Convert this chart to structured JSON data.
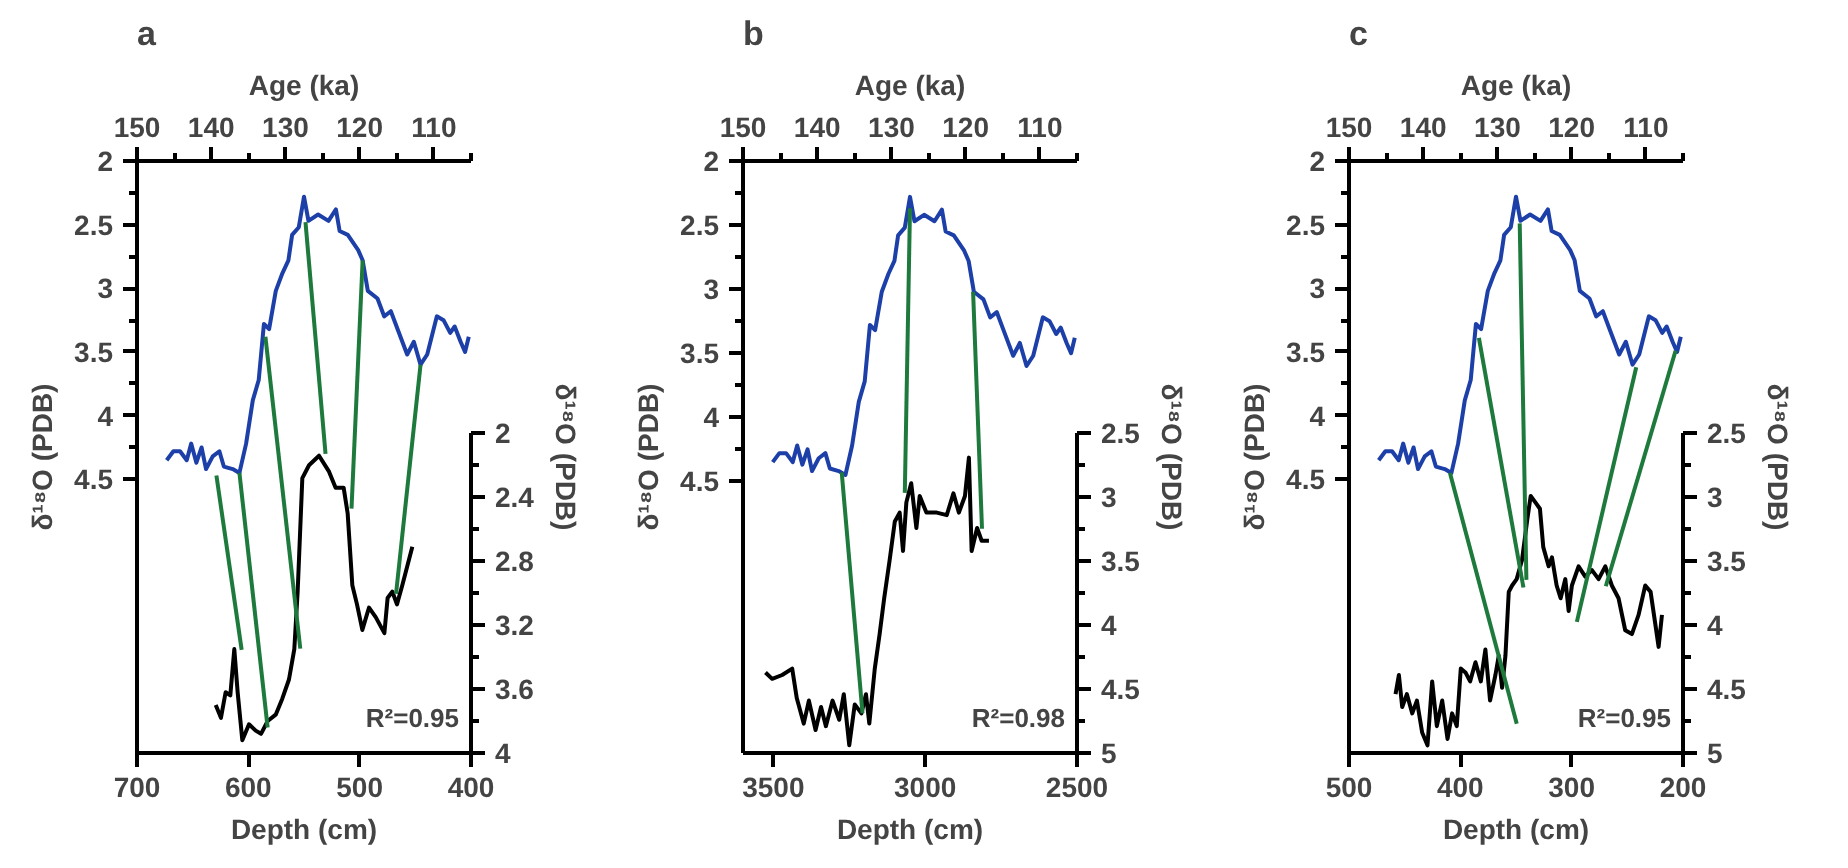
{
  "chart_data": [
    {
      "type": "line",
      "title": "a",
      "xlabel": "Depth (cm)",
      "x2label": "Age (ka)",
      "ylabel": "δ¹⁸O (PDB)",
      "y2label": "δ¹⁸O (PDB)",
      "xlim": [
        700,
        400
      ],
      "xticks": [
        700,
        600,
        500,
        400
      ],
      "x2lim": [
        150,
        105
      ],
      "x2ticks": [
        150,
        {
          "value": 145,
          "label": null
        },
        140,
        {
          "value": 135,
          "label": null
        },
        130,
        {
          "value": 125,
          "label": null
        },
        120,
        {
          "value": 115,
          "label": null
        },
        110,
        {
          "value": 105,
          "label": null
        }
      ],
      "ylim": [
        6.65,
        2
      ],
      "yticks": [
        2,
        {
          "value": 2.25,
          "label": null
        },
        2.5,
        {
          "value": 2.75,
          "label": null
        },
        3,
        {
          "value": 3.25,
          "label": null
        },
        3.5,
        {
          "value": 3.75,
          "label": null
        },
        4,
        {
          "value": 4.25,
          "label": null
        },
        4.5
      ],
      "y2lim": [
        4,
        2
      ],
      "y2ticks": [
        2,
        {
          "value": 2.2,
          "label": null
        },
        2.4,
        {
          "value": 2.6,
          "label": null
        },
        2.8,
        {
          "value": 3.0,
          "label": null
        },
        3.2,
        {
          "value": 3.4,
          "label": null
        },
        3.6,
        {
          "value": 3.8,
          "label": null
        },
        4
      ],
      "annotations": [
        "R²=0.95"
      ],
      "series": [
        {
          "color": "#1d3fa8",
          "axis": "x2",
          "x": [
            146,
            145.1,
            144.2,
            143.3,
            142.7,
            142,
            141.3,
            140.7,
            139.8,
            138.9,
            138.3,
            137.1,
            136.2,
            135.3,
            134.4,
            133.6,
            132.9,
            132.2,
            131.3,
            130.4,
            129.6,
            129.1,
            128.2,
            127.5,
            126.9,
            125.6,
            124.2,
            123.2,
            122.7,
            121.6,
            120.2,
            119.6,
            118.9,
            117.6,
            116.7,
            115.8,
            114.9,
            113.6,
            112.7,
            111.8,
            110.9,
            109.6,
            108.7,
            107.8,
            107.2,
            106.4,
            105.8,
            105.3
          ],
          "values": [
            4.35,
            4.28,
            4.28,
            4.35,
            4.22,
            4.37,
            4.25,
            4.42,
            4.32,
            4.28,
            4.4,
            4.42,
            4.45,
            4.22,
            3.88,
            3.72,
            3.28,
            3.32,
            3.02,
            2.88,
            2.78,
            2.58,
            2.52,
            2.28,
            2.47,
            2.42,
            2.47,
            2.38,
            2.55,
            2.58,
            2.7,
            2.78,
            3.02,
            3.08,
            3.22,
            3.18,
            3.32,
            3.52,
            3.42,
            3.6,
            3.52,
            3.22,
            3.25,
            3.35,
            3.3,
            3.42,
            3.5,
            3.38
          ]
        },
        {
          "color": "#000000",
          "axis": "y2",
          "x": [
            629.3,
            624.6,
            620.4,
            616.2,
            612.6,
            609.6,
            605.4,
            599.4,
            593.4,
            588.6,
            582.6,
            575.4,
            569.5,
            563.5,
            558.7,
            555.7,
            551.5,
            545.5,
            536.5,
            527.5,
            521.6,
            514.4,
            510.8,
            506.6,
            502.4,
            497.6,
            491.6,
            485.6,
            477.8,
            474.9,
            470.7,
            466.5,
            461.7,
            452.7
          ],
          "values": [
            3.7,
            3.78,
            3.62,
            3.64,
            3.35,
            3.62,
            3.92,
            3.82,
            3.86,
            3.88,
            3.8,
            3.76,
            3.66,
            3.54,
            3.35,
            2.99,
            2.28,
            2.2,
            2.14,
            2.24,
            2.34,
            2.34,
            2.5,
            2.95,
            3.07,
            3.23,
            3.09,
            3.15,
            3.25,
            3.03,
            2.99,
            3.07,
            2.95,
            2.71
          ]
        },
        {
          "color": "#1e7a3c",
          "axis": "x2",
          "x": [
            139.3,
            135.9
          ],
          "values": [
            4.47,
            5.84
          ]
        },
        {
          "color": "#1e7a3c",
          "axis": "x2",
          "x": [
            136.2,
            132.4
          ],
          "values": [
            4.45,
            6.45
          ]
        },
        {
          "color": "#1e7a3c",
          "axis": "x2",
          "x": [
            132.7,
            128.0
          ],
          "values": [
            3.38,
            5.83
          ]
        },
        {
          "color": "#1e7a3c",
          "axis": "x2",
          "x": [
            127.3,
            124.6
          ],
          "values": [
            2.48,
            4.3
          ]
        },
        {
          "color": "#1e7a3c",
          "axis": "x2",
          "x": [
            119.6,
            121.1
          ],
          "values": [
            2.78,
            4.73
          ]
        },
        {
          "color": "#1e7a3c",
          "axis": "x2",
          "x": [
            111.8,
            115.1
          ],
          "values": [
            3.6,
            5.4
          ]
        }
      ]
    },
    {
      "type": "line",
      "title": "b",
      "xlabel": "Depth (cm)",
      "x2label": "Age (ka)",
      "ylabel": "δ¹⁸O (PDB)",
      "y2label": "δ¹⁸O (PDB)",
      "xlim": [
        3600,
        2500
      ],
      "xticks": [
        3500,
        3000,
        2500
      ],
      "x2lim": [
        150,
        105
      ],
      "x2ticks": [
        150,
        {
          "value": 145,
          "label": null
        },
        140,
        {
          "value": 135,
          "label": null
        },
        130,
        {
          "value": 125,
          "label": null
        },
        120,
        {
          "value": 115,
          "label": null
        },
        110,
        {
          "value": 105,
          "label": null
        }
      ],
      "ylim": [
        6.62,
        2
      ],
      "yticks": [
        2,
        {
          "value": 2.25,
          "label": null
        },
        2.5,
        {
          "value": 2.75,
          "label": null
        },
        3,
        {
          "value": 3.25,
          "label": null
        },
        3.5,
        {
          "value": 3.75,
          "label": null
        },
        4,
        {
          "value": 4.25,
          "label": null
        },
        4.5
      ],
      "y2lim": [
        5,
        2.5
      ],
      "y2ticks": [
        2.5,
        {
          "value": 2.75,
          "label": null
        },
        3,
        {
          "value": 3.25,
          "label": null
        },
        3.5,
        {
          "value": 3.75,
          "label": null
        },
        4,
        {
          "value": 4.25,
          "label": null
        },
        4.5,
        {
          "value": 4.75,
          "label": null
        },
        5
      ],
      "annotations": [
        "R²=0.98"
      ],
      "series": [
        {
          "color": "#1d3fa8",
          "axis": "x2",
          "x": [
            146,
            145.1,
            144.2,
            143.3,
            142.7,
            142,
            141.3,
            140.7,
            139.8,
            138.9,
            138.3,
            137.1,
            136.2,
            135.3,
            134.4,
            133.6,
            132.9,
            132.2,
            131.3,
            130.4,
            129.6,
            129.1,
            128.2,
            127.5,
            126.9,
            125.6,
            124.2,
            123.2,
            122.7,
            121.6,
            120.2,
            119.6,
            118.9,
            117.6,
            116.7,
            115.8,
            114.9,
            113.6,
            112.7,
            111.8,
            110.9,
            109.6,
            108.7,
            107.8,
            107.2,
            106.4,
            105.8,
            105.3
          ],
          "values": [
            4.35,
            4.28,
            4.28,
            4.35,
            4.22,
            4.37,
            4.25,
            4.42,
            4.32,
            4.28,
            4.4,
            4.42,
            4.45,
            4.22,
            3.88,
            3.72,
            3.28,
            3.32,
            3.02,
            2.88,
            2.78,
            2.58,
            2.52,
            2.28,
            2.47,
            2.42,
            2.47,
            2.38,
            2.55,
            2.58,
            2.7,
            2.78,
            3.02,
            3.08,
            3.22,
            3.18,
            3.32,
            3.52,
            3.42,
            3.6,
            3.52,
            3.22,
            3.25,
            3.35,
            3.3,
            3.42,
            3.5,
            3.38
          ]
        },
        {
          "color": "#000000",
          "axis": "y2",
          "x": [
            3526,
            3504,
            3471,
            3438,
            3423,
            3400,
            3383,
            3361,
            3343,
            3327,
            3305,
            3283,
            3268,
            3250,
            3232,
            3210,
            3195,
            3184,
            3166,
            3150,
            3135,
            3117,
            3100,
            3084,
            3073,
            3062,
            3046,
            3029,
            3018,
            2996,
            2962,
            2929,
            2907,
            2889,
            2869,
            2856,
            2847,
            2829,
            2814,
            2790
          ],
          "values": [
            4.37,
            4.42,
            4.39,
            4.34,
            4.57,
            4.77,
            4.59,
            4.82,
            4.64,
            4.79,
            4.59,
            4.74,
            4.54,
            4.94,
            4.62,
            4.69,
            4.54,
            4.77,
            4.34,
            4.07,
            3.79,
            3.49,
            3.19,
            3.12,
            3.42,
            3.04,
            2.89,
            3.24,
            2.99,
            3.12,
            3.12,
            3.14,
            2.97,
            3.12,
            2.99,
            2.69,
            3.42,
            3.24,
            3.34,
            3.34
          ]
        },
        {
          "color": "#1e7a3c",
          "axis": "x2",
          "x": [
            136.7,
            133.9
          ],
          "values": [
            4.43,
            6.31
          ]
        },
        {
          "color": "#1e7a3c",
          "axis": "x2",
          "x": [
            127.5,
            128.2
          ],
          "values": [
            2.37,
            4.59
          ]
        },
        {
          "color": "#1e7a3c",
          "axis": "x2",
          "x": [
            119.0,
            117.8
          ],
          "values": [
            3.02,
            4.87
          ]
        }
      ]
    },
    {
      "type": "line",
      "title": "c",
      "xlabel": "Depth (cm)",
      "x2label": "Age (ka)",
      "ylabel": "δ¹⁸O (PDB)",
      "y2label": "δ¹⁸O (PDB)",
      "xlim": [
        500,
        200
      ],
      "xticks": [
        500,
        400,
        300,
        200
      ],
      "x2lim": [
        150,
        105
      ],
      "x2ticks": [
        150,
        {
          "value": 145,
          "label": null
        },
        140,
        {
          "value": 135,
          "label": null
        },
        130,
        {
          "value": 125,
          "label": null
        },
        120,
        {
          "value": 115,
          "label": null
        },
        110,
        {
          "value": 105,
          "label": null
        }
      ],
      "ylim": [
        6.65,
        2
      ],
      "yticks": [
        2,
        {
          "value": 2.25,
          "label": null
        },
        2.5,
        {
          "value": 2.75,
          "label": null
        },
        3,
        {
          "value": 3.25,
          "label": null
        },
        3.5,
        {
          "value": 3.75,
          "label": null
        },
        4,
        {
          "value": 4.25,
          "label": null
        },
        4.5
      ],
      "y2lim": [
        5,
        2.5
      ],
      "y2ticks": [
        2.5,
        {
          "value": 2.75,
          "label": null
        },
        3,
        {
          "value": 3.25,
          "label": null
        },
        3.5,
        {
          "value": 3.75,
          "label": null
        },
        4,
        {
          "value": 4.25,
          "label": null
        },
        4.5,
        {
          "value": 4.75,
          "label": null
        },
        5
      ],
      "annotations": [
        "R²=0.95"
      ],
      "series": [
        {
          "color": "#1d3fa8",
          "axis": "x2",
          "x": [
            146,
            145.1,
            144.2,
            143.3,
            142.7,
            142,
            141.3,
            140.7,
            139.8,
            138.9,
            138.3,
            137.1,
            136.2,
            135.3,
            134.4,
            133.6,
            132.9,
            132.2,
            131.3,
            130.4,
            129.6,
            129.1,
            128.2,
            127.5,
            126.9,
            125.6,
            124.2,
            123.2,
            122.7,
            121.6,
            120.2,
            119.6,
            118.9,
            117.6,
            116.7,
            115.8,
            114.9,
            113.6,
            112.7,
            111.8,
            110.9,
            109.6,
            108.7,
            107.8,
            107.2,
            106.4,
            105.8,
            105.3
          ],
          "values": [
            4.35,
            4.28,
            4.28,
            4.35,
            4.22,
            4.37,
            4.25,
            4.42,
            4.32,
            4.28,
            4.4,
            4.42,
            4.45,
            4.22,
            3.88,
            3.72,
            3.28,
            3.32,
            3.02,
            2.88,
            2.78,
            2.58,
            2.52,
            2.28,
            2.47,
            2.42,
            2.47,
            2.38,
            2.55,
            2.58,
            2.7,
            2.78,
            3.02,
            3.08,
            3.22,
            3.18,
            3.32,
            3.52,
            3.42,
            3.6,
            3.52,
            3.22,
            3.25,
            3.35,
            3.3,
            3.42,
            3.5,
            3.38
          ]
        },
        {
          "color": "#000000",
          "axis": "y2",
          "x": [
            458.2,
            455.2,
            452.2,
            448,
            443.2,
            439,
            434.3,
            429.5,
            425.3,
            421.1,
            416.3,
            411.5,
            407.4,
            403.2,
            399.6,
            395.4,
            391.2,
            386.4,
            381.6,
            377.5,
            373.3,
            368.5,
            365.5,
            362.5,
            359.5,
            356.5,
            353.5,
            349.4,
            344.6,
            339.8,
            336.8,
            332.6,
            328.5,
            325.5,
            320.7,
            317.7,
            313.5,
            309.9,
            305.7,
            302.7,
            299.8,
            293.8,
            287.8,
            281.8,
            275.8,
            269.8,
            263.9,
            257.9,
            251.9,
            245.9,
            239.9,
            233.9,
            229.1,
            224.9,
            221.9,
            218.9
          ],
          "values": [
            4.54,
            4.39,
            4.64,
            4.54,
            4.69,
            4.59,
            4.84,
            4.94,
            4.44,
            4.79,
            4.59,
            4.89,
            4.69,
            4.79,
            4.34,
            4.37,
            4.44,
            4.29,
            4.44,
            4.19,
            4.59,
            4.39,
            4.24,
            4.49,
            4.24,
            3.74,
            3.69,
            3.64,
            3.49,
            3.17,
            2.99,
            3.04,
            3.09,
            3.39,
            3.54,
            3.47,
            3.69,
            3.79,
            3.64,
            3.89,
            3.69,
            3.54,
            3.62,
            3.57,
            3.64,
            3.54,
            3.69,
            3.79,
            4.04,
            4.07,
            3.92,
            3.69,
            3.74,
            3.99,
            4.17,
            3.92
          ]
        },
        {
          "color": "#1e7a3c",
          "axis": "x2",
          "x": [
            136.4,
            127.4
          ],
          "values": [
            4.45,
            6.42
          ]
        },
        {
          "color": "#1e7a3c",
          "axis": "x2",
          "x": [
            132.5,
            126.5
          ],
          "values": [
            3.39,
            5.35
          ]
        },
        {
          "color": "#1e7a3c",
          "axis": "x2",
          "x": [
            127.0,
            126.1
          ],
          "values": [
            2.49,
            5.29
          ]
        },
        {
          "color": "#1e7a3c",
          "axis": "x2",
          "x": [
            111.3,
            119.3
          ],
          "values": [
            3.62,
            5.62
          ]
        },
        {
          "color": "#1e7a3c",
          "axis": "x2",
          "x": [
            106.0,
            115.4
          ],
          "values": [
            3.49,
            5.34
          ]
        }
      ]
    }
  ]
}
